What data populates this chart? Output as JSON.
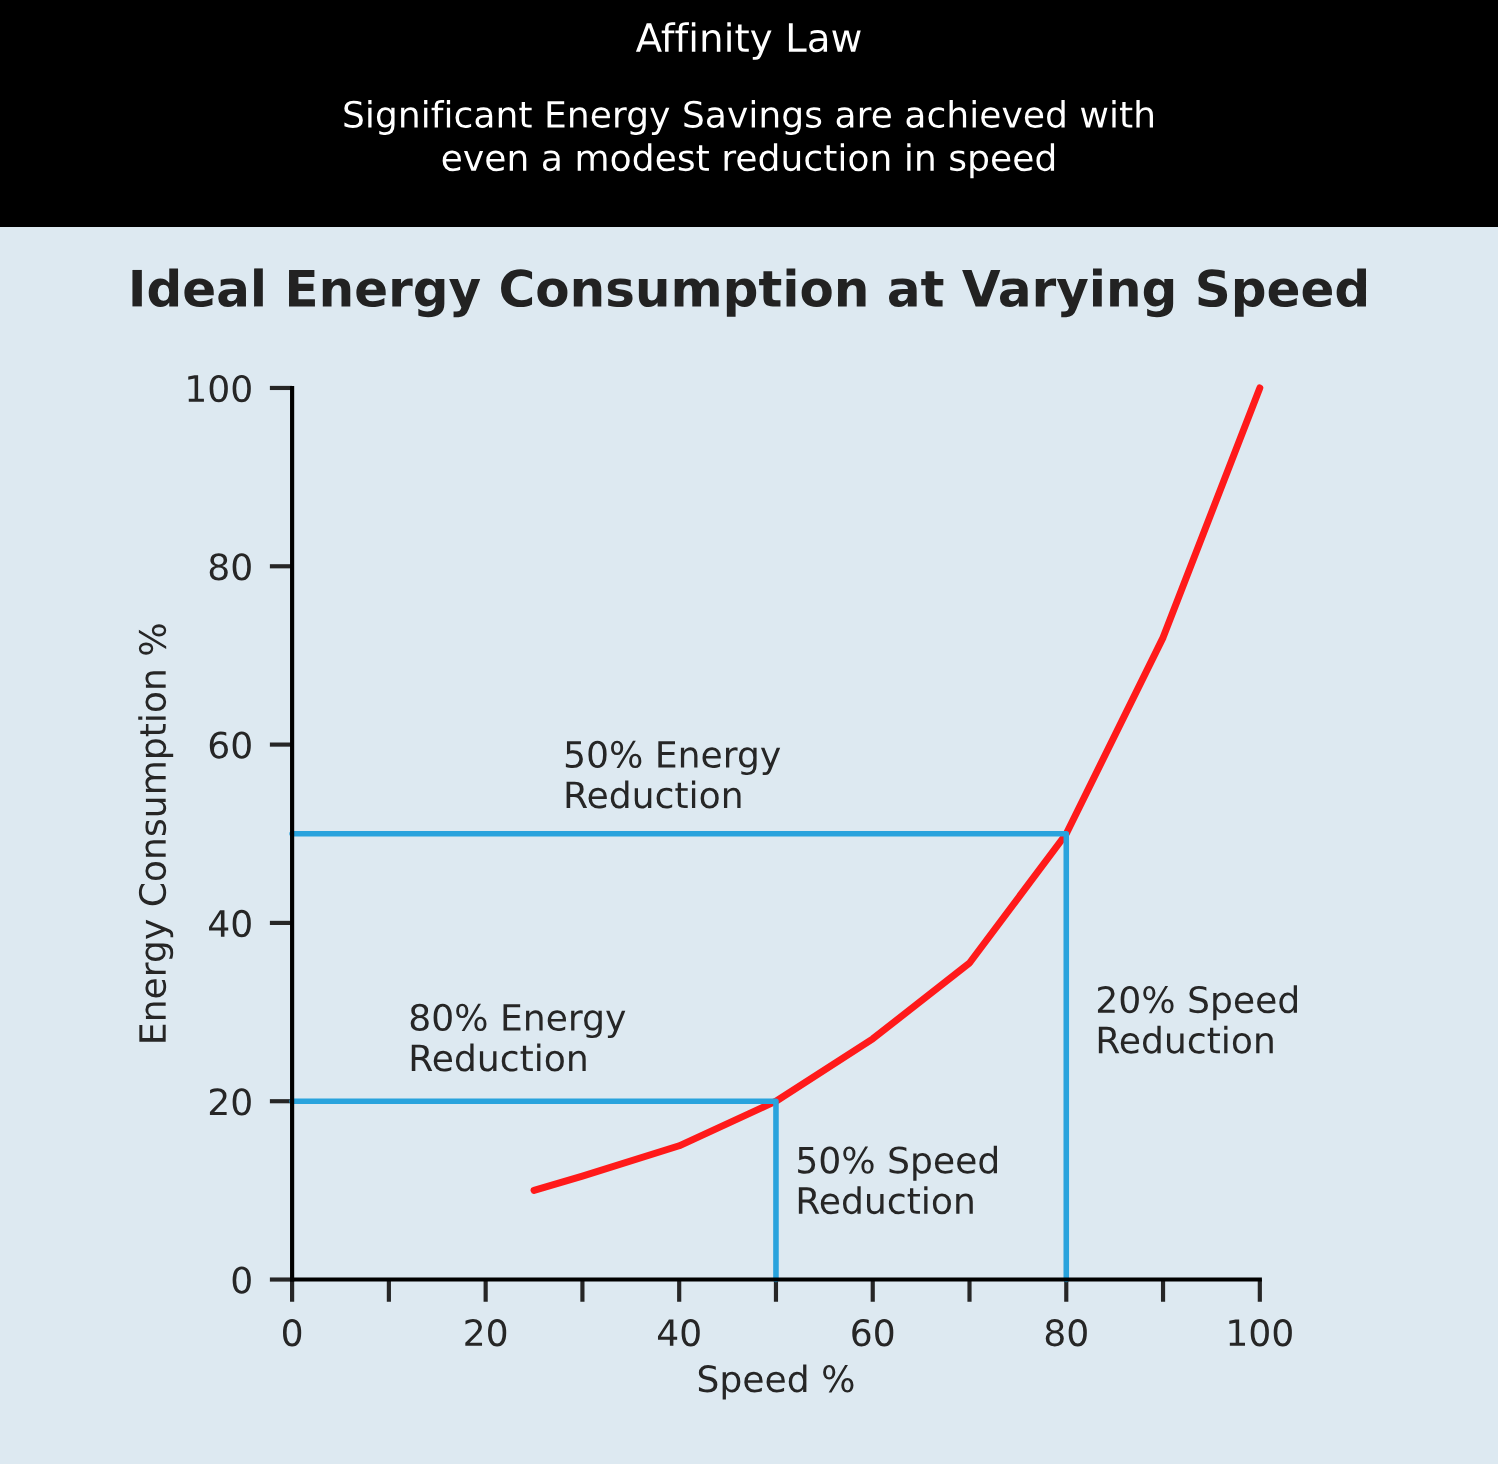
{
  "chart_data": {
    "type": "line",
    "title": "Affinity Law",
    "subtitle": "Significant Energy Savings are achieved with\neven a modest reduction in speed",
    "xlabel": "Speed %",
    "ylabel": "Energy Consumption %",
    "series": [
      {
        "color": "#ff1a1a",
        "x": [
          25,
          30,
          40,
          50,
          60,
          70,
          80,
          90,
          100
        ],
        "values": [
          10,
          11.6,
          15,
          20,
          27,
          35.5,
          50,
          72,
          100
        ]
      },
      {
        "color": "#29a3dd",
        "x": [
          0,
          80,
          80
        ],
        "values": [
          50,
          50,
          0
        ]
      },
      {
        "color": "#29a3dd",
        "x": [
          0,
          50,
          50
        ],
        "values": [
          20,
          20,
          0
        ]
      }
    ],
    "annotations": [
      "Ideal Energy Consumption at Varying Speed",
      "50% Energy\nReduction",
      "80% Energy\nReduction",
      "50% Speed\nReduction",
      "20% Speed\nReduction"
    ],
    "xlim": [
      0,
      100
    ],
    "ylim": [
      0,
      100
    ],
    "xticks": [
      0,
      {
        "value": 10,
        "label": null
      },
      20,
      {
        "value": 30,
        "label": null
      },
      40,
      {
        "value": 50,
        "label": null
      },
      60,
      {
        "value": 70,
        "label": null
      },
      80,
      {
        "value": 90,
        "label": null
      },
      100
    ],
    "yticks": [
      0,
      20,
      40,
      60,
      80,
      100
    ],
    "grid": false,
    "legend": false
  }
}
